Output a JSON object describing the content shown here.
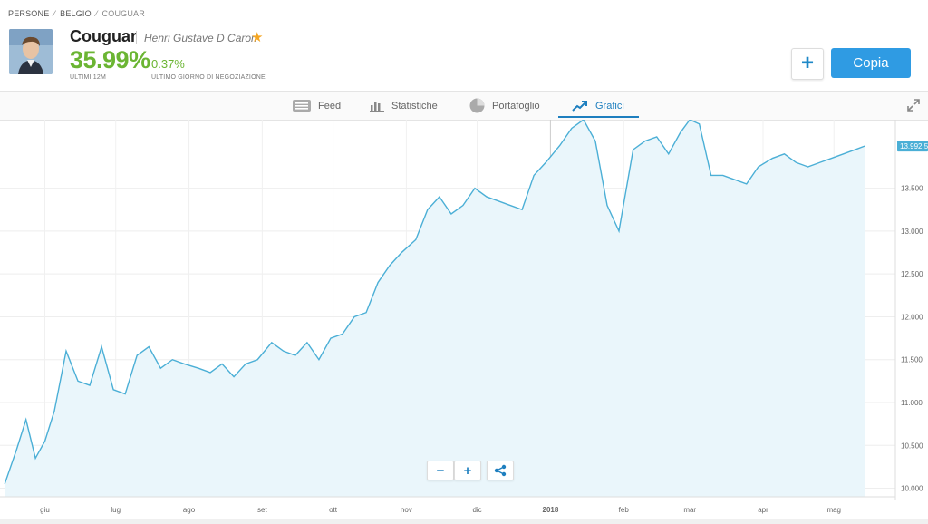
{
  "breadcrumb": [
    "PERSONE",
    "BELGIO",
    "COUGUAR"
  ],
  "trader": {
    "username": "Couguar",
    "full_name": "Henri Gustave D Caron",
    "gain_12m": "35.99%",
    "gain_12m_label": "ULTIMI 12M",
    "daily_gain": "0.37%",
    "daily_gain_label": "ULTIMO GIORNO DI NEGOZIAZIONE"
  },
  "actions": {
    "add_label": "+",
    "copy_label": "Copia"
  },
  "tabs": [
    {
      "label": "Feed",
      "icon": "feed-icon",
      "active": false
    },
    {
      "label": "Statistiche",
      "icon": "bar-chart-icon",
      "active": false
    },
    {
      "label": "Portafoglio",
      "icon": "pie-chart-icon",
      "active": false
    },
    {
      "label": "Grafici",
      "icon": "trend-icon",
      "active": true
    }
  ],
  "colors": {
    "accent": "#2f9be3",
    "gain": "#6bb533",
    "line": "#4bafd6",
    "fill": "#eaf6fb"
  },
  "chart_data": {
    "type": "line",
    "current_value_label": "13.992,5",
    "y_ticks": [
      "13.500",
      "13.000",
      "12.500",
      "12.000",
      "11.500",
      "11.000",
      "10.500",
      "10.000"
    ],
    "x_ticks": [
      "giu",
      "lug",
      "ago",
      "set",
      "ott",
      "nov",
      "dic",
      "2018",
      "feb",
      "mar",
      "apr",
      "mag"
    ],
    "ylim": [
      9900,
      14300
    ],
    "grid": true,
    "x": [
      "2017-05-15",
      "2017-05-20",
      "2017-05-24",
      "2017-05-28",
      "2017-06-01",
      "2017-06-05",
      "2017-06-10",
      "2017-06-15",
      "2017-06-20",
      "2017-06-25",
      "2017-06-30",
      "2017-07-05",
      "2017-07-10",
      "2017-07-15",
      "2017-07-20",
      "2017-07-25",
      "2017-07-30",
      "2017-08-05",
      "2017-08-10",
      "2017-08-15",
      "2017-08-20",
      "2017-08-25",
      "2017-08-30",
      "2017-09-05",
      "2017-09-10",
      "2017-09-15",
      "2017-09-20",
      "2017-09-25",
      "2017-09-30",
      "2017-10-05",
      "2017-10-10",
      "2017-10-15",
      "2017-10-20",
      "2017-10-25",
      "2017-10-30",
      "2017-11-05",
      "2017-11-10",
      "2017-11-15",
      "2017-11-20",
      "2017-11-25",
      "2017-11-30",
      "2017-12-05",
      "2017-12-10",
      "2017-12-15",
      "2017-12-20",
      "2017-12-25",
      "2017-12-30",
      "2018-01-05",
      "2018-01-10",
      "2018-01-15",
      "2018-01-20",
      "2018-01-25",
      "2018-01-30",
      "2018-02-05",
      "2018-02-10",
      "2018-02-15",
      "2018-02-20",
      "2018-02-25",
      "2018-03-01",
      "2018-03-05",
      "2018-03-10",
      "2018-03-15",
      "2018-03-20",
      "2018-03-25",
      "2018-03-30",
      "2018-04-05",
      "2018-04-10",
      "2018-04-15",
      "2018-04-20",
      "2018-04-25",
      "2018-04-30",
      "2018-05-05",
      "2018-05-10",
      "2018-05-14"
    ],
    "values": [
      10050,
      10450,
      10800,
      10350,
      10550,
      10900,
      11600,
      11250,
      11200,
      11650,
      11150,
      11100,
      11550,
      11650,
      11400,
      11500,
      11450,
      11400,
      11350,
      11450,
      11300,
      11450,
      11500,
      11700,
      11600,
      11550,
      11700,
      11500,
      11750,
      11800,
      12000,
      12050,
      12400,
      12600,
      12750,
      12900,
      13250,
      13400,
      13200,
      13300,
      13500,
      13400,
      13350,
      13300,
      13250,
      13650,
      13800,
      14000,
      14200,
      14300,
      14050,
      13300,
      13000,
      13950,
      14050,
      14100,
      13900,
      14150,
      14300,
      14250,
      13650,
      13650,
      13600,
      13550,
      13750,
      13850,
      13900,
      13800,
      13750,
      13800,
      13850,
      13900,
      13950,
      13992
    ]
  }
}
